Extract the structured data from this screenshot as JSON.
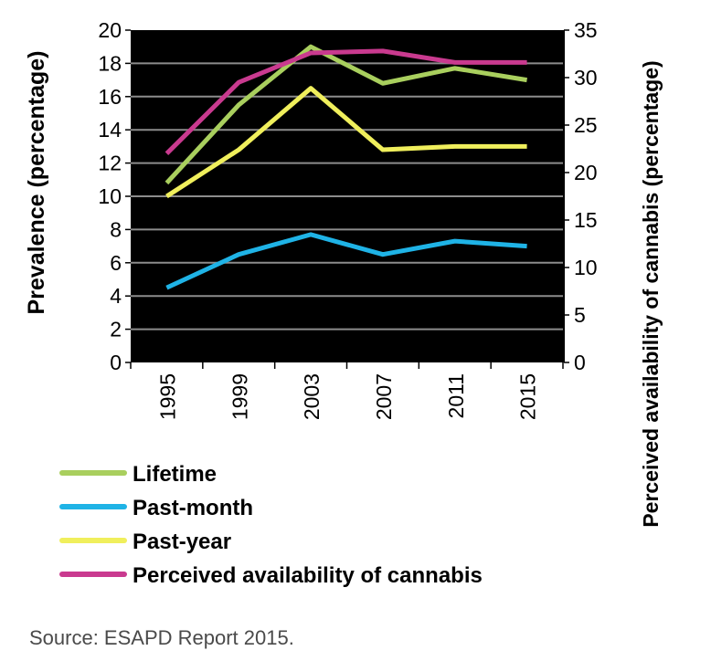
{
  "chart_data": {
    "type": "line",
    "categories": [
      "1995",
      "1999",
      "2003",
      "2007",
      "2011",
      "2015"
    ],
    "ylabel": "Prevalence (percentage)",
    "y2label": "Perceived availability of cannabis (percentage)",
    "ylim": [
      0,
      20
    ],
    "y_ticks": [
      "0",
      "2",
      "4",
      "6",
      "8",
      "10",
      "12",
      "14",
      "16",
      "18",
      "20"
    ],
    "y2lim": [
      0,
      35
    ],
    "y2_ticks": [
      "0",
      "5",
      "10",
      "15",
      "20",
      "25",
      "30",
      "35"
    ],
    "grid": true,
    "background": "#000000",
    "legend_position": "bottom",
    "series": [
      {
        "name": "Lifetime",
        "axis": "left",
        "color": "#a9cf5e",
        "values": [
          10.8,
          15.5,
          19.0,
          16.8,
          17.7,
          17.0
        ]
      },
      {
        "name": "Past-month",
        "axis": "left",
        "color": "#1fb3e6",
        "values": [
          4.5,
          6.5,
          7.7,
          6.5,
          7.3,
          7.0
        ]
      },
      {
        "name": "Past-year",
        "axis": "left",
        "color": "#f0ef5c",
        "values": [
          10.0,
          12.8,
          16.5,
          12.8,
          13.0,
          13.0
        ]
      },
      {
        "name": "Perceived availability of cannabis",
        "axis": "right",
        "color": "#c93a8f",
        "values": [
          22.0,
          29.5,
          32.6,
          32.8,
          31.6,
          31.6
        ]
      }
    ]
  },
  "source": "Source: ESAPD Report 2015."
}
